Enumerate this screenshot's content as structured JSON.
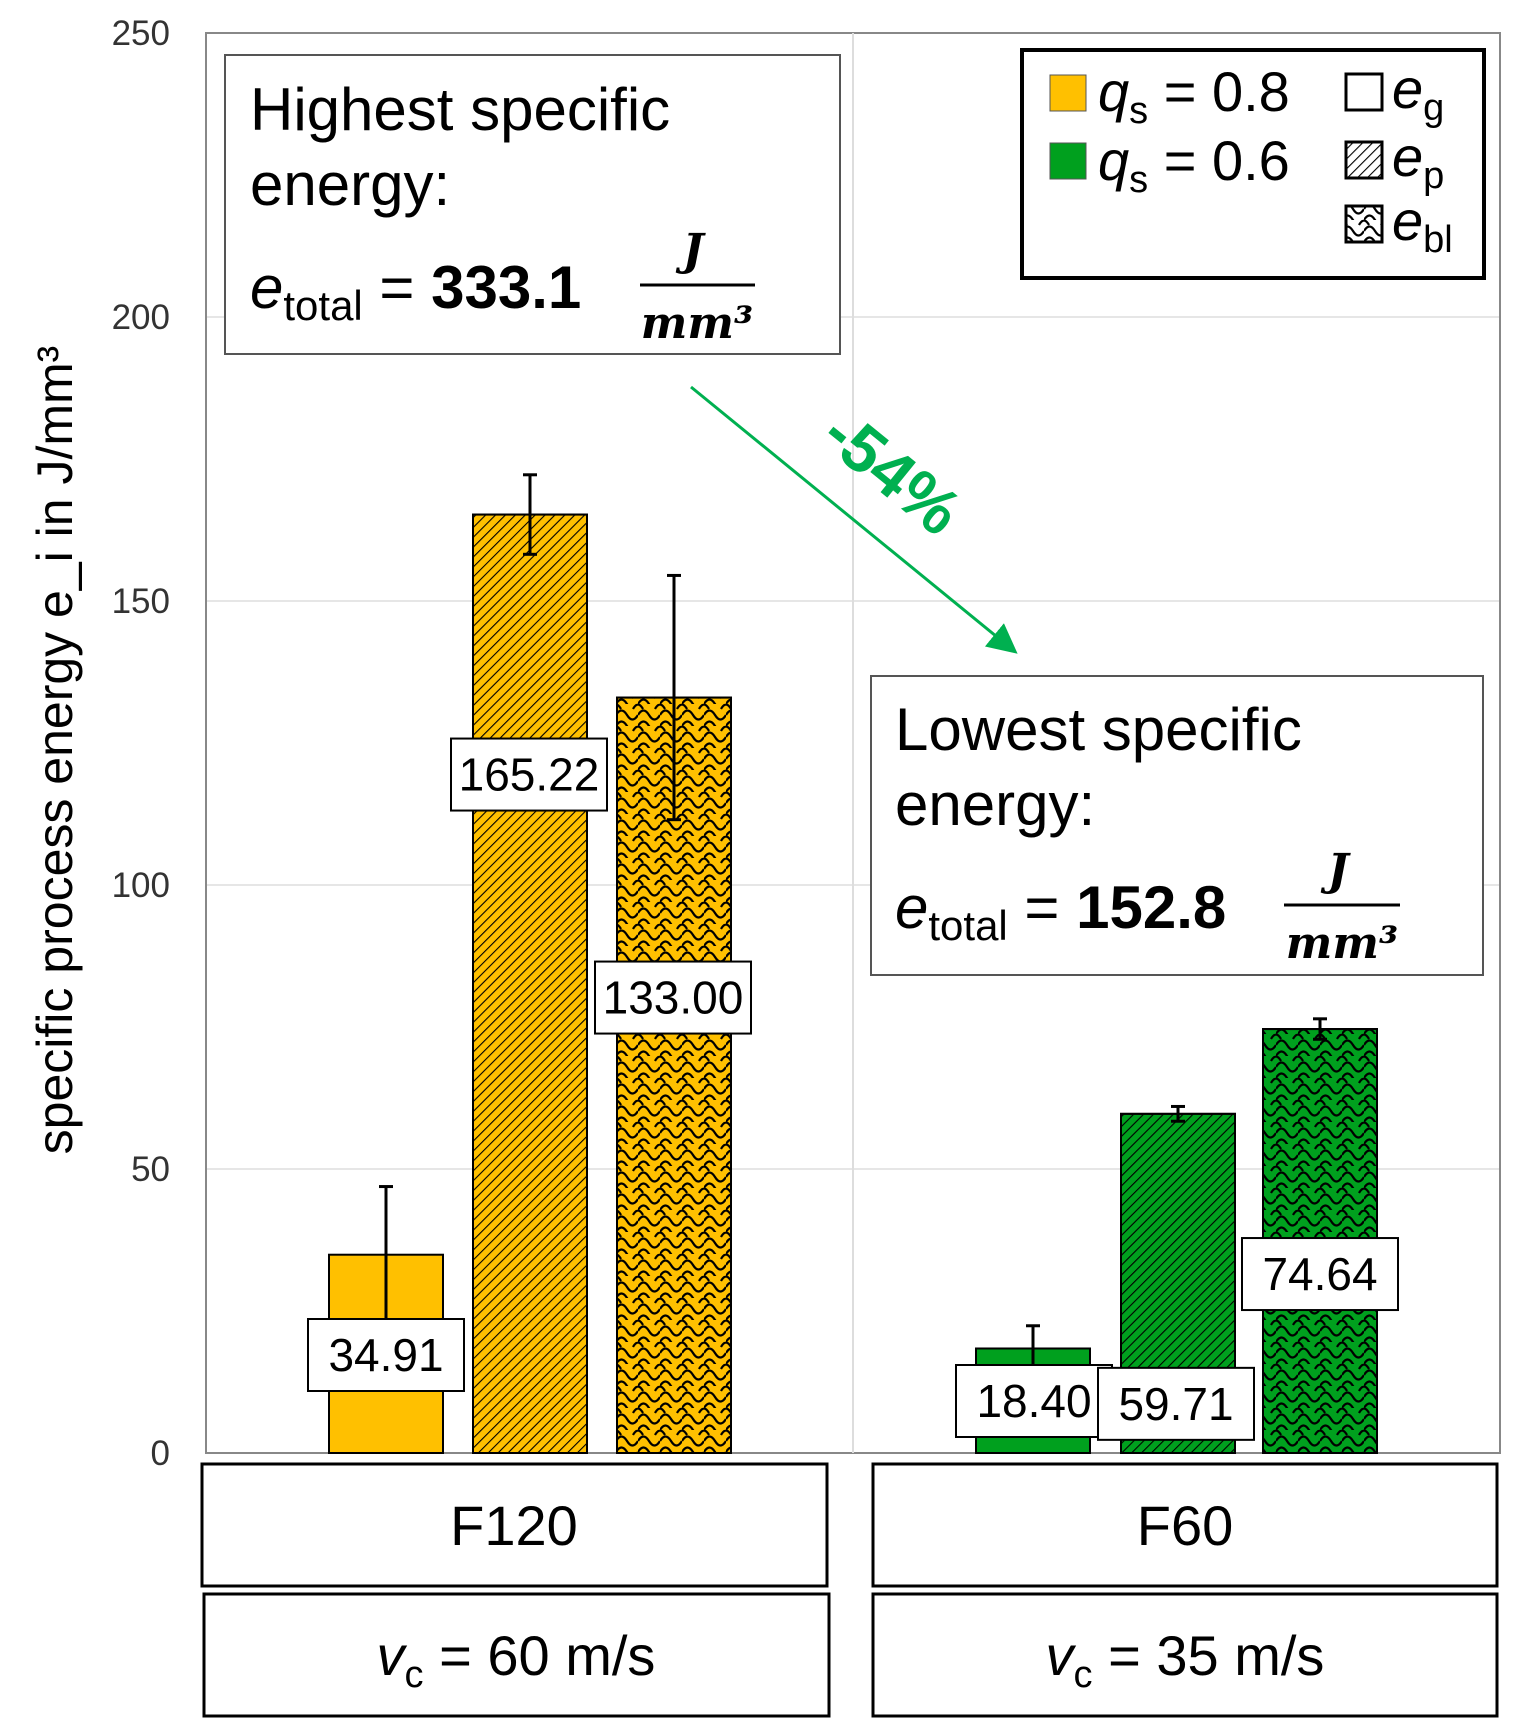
{
  "chart_data": {
    "type": "bar",
    "ylabel": "specific process energy e_i in J/mm³",
    "ylabel_parts": {
      "main": "specific process energy e",
      "sub": "i",
      "tail": " in J/mm",
      "sup": "3"
    },
    "ylim": [
      0,
      250
    ],
    "yticks": [
      "0",
      "50",
      "100",
      "150",
      "200",
      "250"
    ],
    "grid": true,
    "groups": [
      {
        "label": "F120",
        "vc_label": "= 60 m/s",
        "vc_symbol": "v",
        "vc_sub": "c",
        "color": "#FFC000"
      },
      {
        "label": "F60",
        "vc_label": "= 35 m/s",
        "vc_symbol": "v",
        "vc_sub": "c",
        "color": "#00A01E"
      }
    ],
    "series": [
      {
        "name": "e_g",
        "pattern": "solid",
        "values": [
          34.91,
          18.4
        ],
        "errors": [
          12.0,
          4.0
        ],
        "labels": [
          "34.91",
          "18.40"
        ]
      },
      {
        "name": "e_p",
        "pattern": "hatch",
        "values": [
          165.22,
          59.71
        ],
        "errors": [
          7.0,
          1.3
        ],
        "labels": [
          "165.22",
          "59.71"
        ]
      },
      {
        "name": "e_bl",
        "pattern": "scales",
        "values": [
          133.0,
          74.64
        ],
        "errors": [
          21.5,
          1.8
        ],
        "labels": [
          "133.00",
          "74.64"
        ]
      }
    ],
    "legend": {
      "placement": "top-right",
      "colors": [
        {
          "sym": "q",
          "sub": "s",
          "text": " = 0.8",
          "color": "#FFC000"
        },
        {
          "sym": "q",
          "sub": "s",
          "text": " = 0.6",
          "color": "#00A01E"
        }
      ],
      "patterns": [
        {
          "sym": "e",
          "sub": "g"
        },
        {
          "sym": "e",
          "sub": "p"
        },
        {
          "sym": "e",
          "sub": "bl"
        }
      ]
    },
    "annotations": {
      "highest": {
        "line1": "Highest specific",
        "line2": "energy:",
        "sym": "e",
        "sub": "total",
        "eq": " = ",
        "value": "333.1",
        "unit_num": "J",
        "unit_den": "mm³"
      },
      "lowest": {
        "line1": "Lowest specific",
        "line2": "energy:",
        "sym": "e",
        "sub": "total",
        "eq": " = ",
        "value": "152.8",
        "unit_num": "J",
        "unit_den": "mm³"
      },
      "reduction": "-54%",
      "reduction_color": "#00B050"
    }
  }
}
